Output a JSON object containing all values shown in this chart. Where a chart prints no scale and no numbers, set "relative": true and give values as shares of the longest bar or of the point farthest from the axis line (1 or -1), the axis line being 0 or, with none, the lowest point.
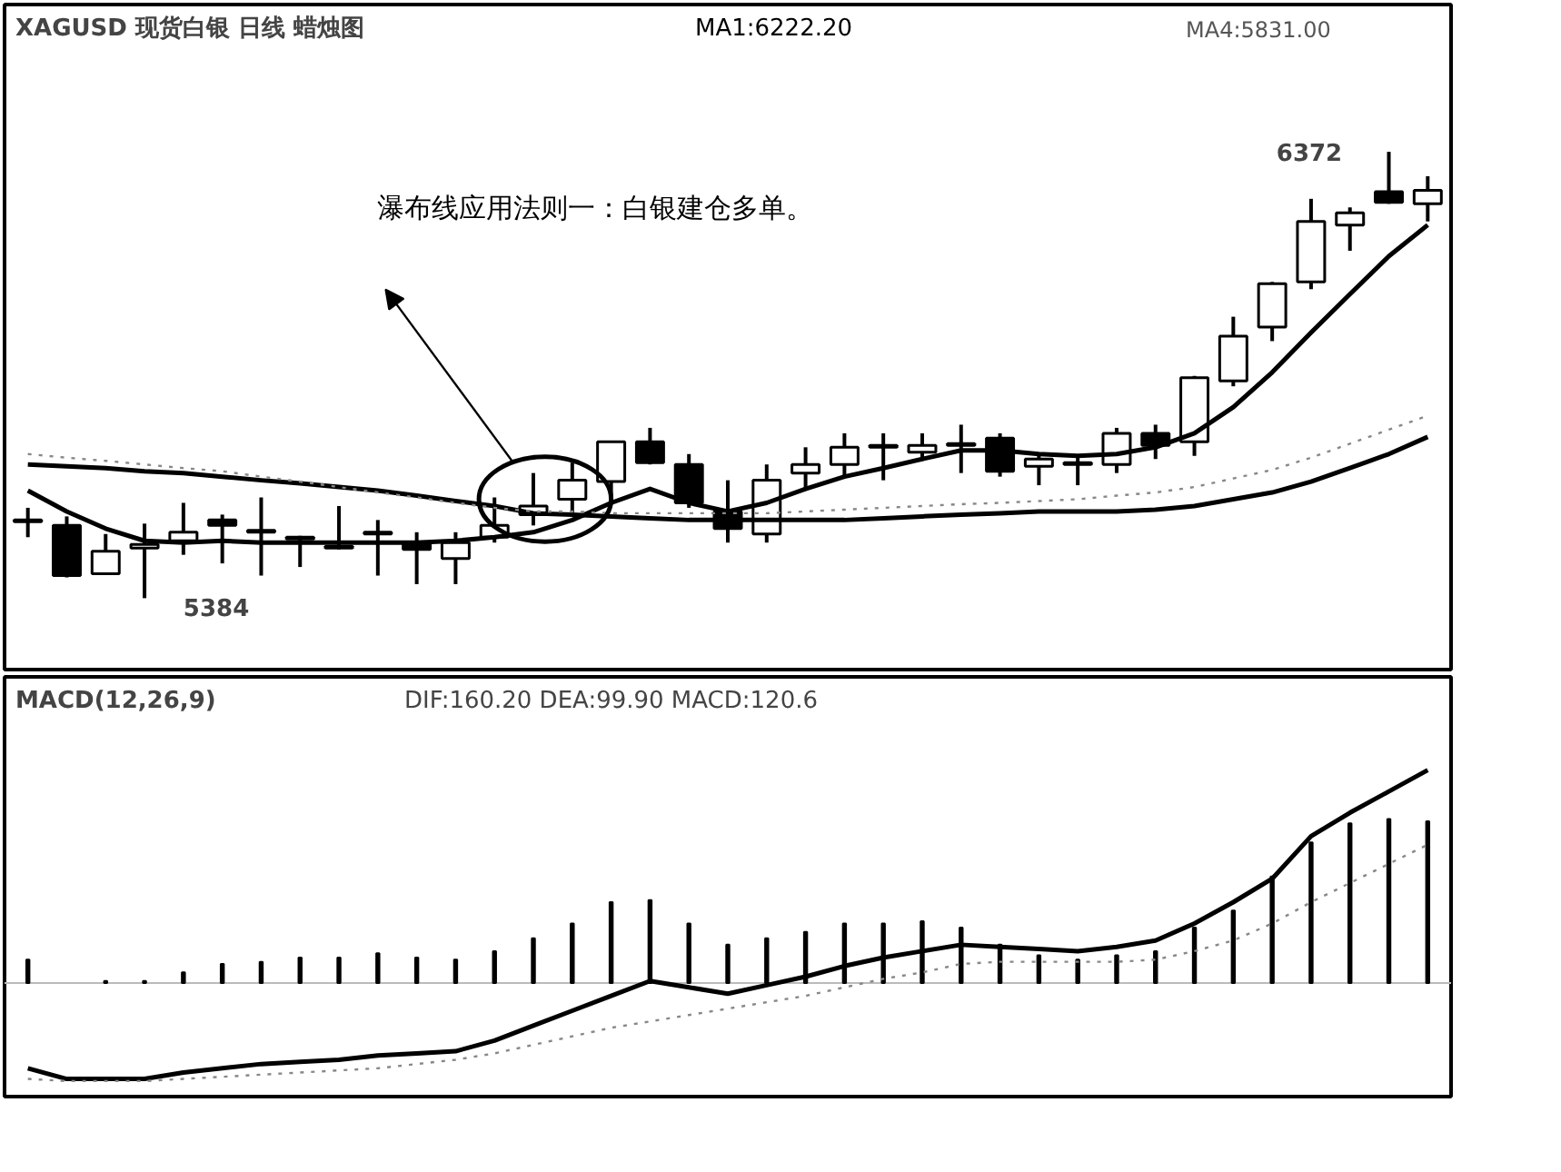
{
  "chart_data": [
    {
      "type": "candlestick",
      "title": "XAGUSD 现货白银 日线 蜡烛图",
      "categories": [
        null,
        null,
        null,
        null,
        null,
        null,
        null,
        null,
        null,
        null,
        null,
        null,
        null,
        null,
        null,
        null,
        null,
        null,
        null,
        null,
        null,
        null,
        null,
        null,
        null,
        null,
        null,
        null,
        null,
        null,
        null,
        null,
        null,
        null,
        null,
        null,
        null
      ],
      "ohlc": [
        [
          5553,
          5584,
          5519,
          5557
        ],
        [
          5545,
          5565,
          5430,
          5434
        ],
        [
          5438,
          5526,
          5438,
          5488
        ],
        [
          5495,
          5549,
          5384,
          5503
        ],
        [
          5511,
          5595,
          5480,
          5530
        ],
        [
          5557,
          5569,
          5461,
          5545
        ],
        [
          5530,
          5607,
          5434,
          5534
        ],
        [
          5519,
          5522,
          5453,
          5515
        ],
        [
          5495,
          5588,
          5492,
          5499
        ],
        [
          5530,
          5557,
          5434,
          5526
        ],
        [
          5507,
          5530,
          5415,
          5492
        ],
        [
          5472,
          5530,
          5415,
          5507
        ],
        [
          5519,
          5607,
          5507,
          5545
        ],
        [
          5569,
          5661,
          5545,
          5588
        ],
        [
          5603,
          5684,
          5569,
          5645
        ],
        [
          5642,
          5730,
          5607,
          5730
        ],
        [
          5730,
          5761,
          5680,
          5684
        ],
        [
          5680,
          5703,
          5584,
          5595
        ],
        [
          5576,
          5645,
          5507,
          5538
        ],
        [
          5526,
          5680,
          5507,
          5645
        ],
        [
          5661,
          5718,
          5622,
          5680
        ],
        [
          5680,
          5749,
          5653,
          5718
        ],
        [
          5718,
          5749,
          5645,
          5722
        ],
        [
          5707,
          5749,
          5692,
          5722
        ],
        [
          5722,
          5768,
          5661,
          5726
        ],
        [
          5738,
          5749,
          5653,
          5665
        ],
        [
          5676,
          5699,
          5634,
          5692
        ],
        [
          5680,
          5699,
          5634,
          5684
        ],
        [
          5680,
          5761,
          5661,
          5749
        ],
        [
          5749,
          5768,
          5692,
          5722
        ],
        [
          5730,
          5876,
          5699,
          5872
        ],
        [
          5865,
          6007,
          5853,
          5964
        ],
        [
          5984,
          6084,
          5953,
          6080
        ],
        [
          6084,
          6268,
          6068,
          6218
        ],
        [
          6210,
          6249,
          6153,
          6237
        ],
        [
          6284,
          6372,
          6257,
          6260
        ],
        [
          6257,
          6318,
          6218,
          6287
        ]
      ],
      "series": [
        {
          "type": "line",
          "color": "#000000",
          "line_style": "solid",
          "values": [
            5622,
            5576,
            5538,
            5511,
            5507,
            5511,
            5507,
            5507,
            5507,
            5507,
            5507,
            5511,
            5519,
            5530,
            5557,
            5595,
            5626,
            5595,
            5576,
            5595,
            5626,
            5653,
            5672,
            5692,
            5711,
            5711,
            5703,
            5699,
            5703,
            5718,
            5749,
            5807,
            5884,
            5972,
            6057,
            6141,
            6210
          ]
        },
        {
          "type": "line",
          "color": "#000000",
          "line_style": "solid",
          "values": [
            5680,
            5676,
            5672,
            5665,
            5661,
            5653,
            5645,
            5638,
            5630,
            5622,
            5611,
            5599,
            5588,
            5572,
            5569,
            5565,
            5561,
            5557,
            5557,
            5557,
            5557,
            5557,
            5561,
            5565,
            5569,
            5572,
            5576,
            5576,
            5576,
            5580,
            5588,
            5603,
            5618,
            5642,
            5672,
            5703,
            5741
          ]
        },
        {
          "type": "line",
          "color": "#888888",
          "line_style": "dotted",
          "values": [
            5703,
            5695,
            5688,
            5680,
            5672,
            5665,
            5653,
            5642,
            5630,
            5618,
            5607,
            5595,
            5584,
            5576,
            5576,
            5572,
            5572,
            5572,
            5572,
            5572,
            5576,
            5580,
            5584,
            5588,
            5592,
            5595,
            5599,
            5603,
            5611,
            5618,
            5630,
            5649,
            5668,
            5695,
            5726,
            5757,
            5788
          ]
        }
      ],
      "annotations": [
        "MA1:6222.20",
        "MA4:5831.00",
        "瀑布线应用法则一：白银建仓多单。",
        "6372",
        "5384"
      ]
    },
    {
      "type": "line",
      "title": "MACD(12,26,9)",
      "subtitle": "DIF:160.20 DEA:99.90 MACD:120.6",
      "relative": true,
      "categories": [
        null,
        null,
        null,
        null,
        null,
        null,
        null,
        null,
        null,
        null,
        null,
        null,
        null,
        null,
        null,
        null,
        null,
        null,
        null,
        null,
        null,
        null,
        null,
        null,
        null,
        null,
        null,
        null,
        null,
        null,
        null,
        null,
        null,
        null,
        null,
        null,
        null
      ],
      "series": [
        {
          "type": "bar",
          "color": "#000000",
          "values": [
            0.11,
            null,
            0.01,
            0.01,
            0.05,
            0.09,
            0.1,
            0.12,
            0.12,
            0.14,
            0.12,
            0.11,
            0.15,
            0.21,
            0.28,
            0.38,
            0.39,
            0.28,
            0.18,
            0.21,
            0.24,
            0.28,
            0.28,
            0.29,
            0.26,
            0.18,
            0.13,
            0.11,
            0.13,
            0.15,
            0.26,
            0.34,
            0.5,
            0.66,
            0.75,
            0.77,
            0.76
          ]
        },
        {
          "type": "line",
          "color": "#000000",
          "line_style": "solid",
          "values": [
            -0.4,
            -0.45,
            -0.45,
            -0.45,
            -0.42,
            -0.4,
            -0.38,
            -0.37,
            -0.36,
            -0.34,
            -0.33,
            -0.32,
            -0.27,
            -0.2,
            -0.13,
            -0.06,
            0.01,
            -0.02,
            -0.05,
            -0.01,
            0.03,
            0.08,
            0.12,
            0.15,
            0.18,
            0.17,
            0.16,
            0.15,
            0.17,
            0.2,
            0.28,
            0.38,
            0.49,
            0.69,
            0.8,
            0.9,
            1.0
          ]
        },
        {
          "type": "line",
          "color": "#888888",
          "line_style": "dotted",
          "values": [
            -0.45,
            -0.46,
            -0.46,
            -0.46,
            -0.45,
            -0.44,
            -0.43,
            -0.42,
            -0.41,
            -0.4,
            -0.38,
            -0.36,
            -0.33,
            -0.29,
            -0.25,
            -0.21,
            -0.18,
            -0.15,
            -0.12,
            -0.09,
            -0.06,
            -0.02,
            0.02,
            0.05,
            0.09,
            0.1,
            0.1,
            0.1,
            0.1,
            0.11,
            0.15,
            0.2,
            0.28,
            0.38,
            0.47,
            0.56,
            0.65
          ]
        }
      ]
    }
  ]
}
